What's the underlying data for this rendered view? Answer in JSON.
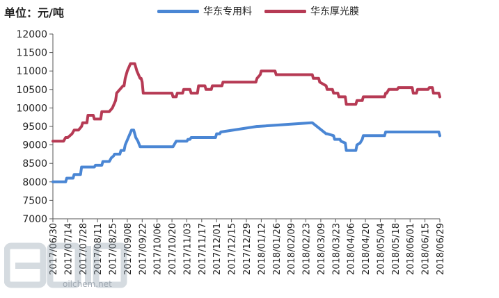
{
  "header": {
    "unit_label": "单位：元/吨"
  },
  "watermark": {
    "text": "oilchem.net"
  },
  "chart_data": {
    "type": "line",
    "ylim": [
      7000,
      12000
    ],
    "yticks": [
      7000,
      7500,
      8000,
      8500,
      9000,
      9500,
      10000,
      10500,
      11000,
      11500,
      12000
    ],
    "xlim": [
      "2017-06-30",
      "2018-06-29"
    ],
    "xtick_labels": [
      "2017/06/30",
      "2017/07/14",
      "2017/07/28",
      "2017/08/11",
      "2017/08/25",
      "2017/09/08",
      "2017/09/22",
      "2017/10/06",
      "2017/10/20",
      "2017/11/03",
      "2017/11/17",
      "2017/12/01",
      "2017/12/15",
      "2017/12/29",
      "2018/01/12",
      "2018/01/26",
      "2018/02/09",
      "2018/02/23",
      "2018/03/09",
      "2018/03/23",
      "2018/04/06",
      "2018/04/20",
      "2018/05/04",
      "2018/05/18",
      "2018/06/01",
      "2018/06/15",
      "2018/06/29"
    ],
    "legend_position": "top",
    "grid": false,
    "series": [
      {
        "name": "华东专用料",
        "color": "#4a86d4",
        "x": [
          "2017-06-30",
          "2017-07-12",
          "2017-07-13",
          "2017-07-19",
          "2017-07-20",
          "2017-07-26",
          "2017-07-27",
          "2017-08-08",
          "2017-08-09",
          "2017-08-15",
          "2017-08-16",
          "2017-08-22",
          "2017-08-23",
          "2017-08-24",
          "2017-08-26",
          "2017-08-27",
          "2017-09-01",
          "2017-09-02",
          "2017-09-05",
          "2017-09-06",
          "2017-09-12",
          "2017-09-13",
          "2017-09-14",
          "2017-09-15",
          "2017-09-16",
          "2017-09-18",
          "2017-09-20",
          "2017-10-20",
          "2017-10-21",
          "2017-10-24",
          "2017-10-25",
          "2017-11-03",
          "2017-11-04",
          "2017-11-06",
          "2017-11-07",
          "2017-11-30",
          "2017-12-01",
          "2017-12-04",
          "2017-12-05",
          "2018-01-08",
          "2018-01-09",
          "2018-02-28",
          "2018-03-01",
          "2018-03-14",
          "2018-03-15",
          "2018-03-21",
          "2018-03-22",
          "2018-03-27",
          "2018-03-28",
          "2018-04-01",
          "2018-04-02",
          "2018-04-11",
          "2018-04-12",
          "2018-04-15",
          "2018-04-17",
          "2018-04-18",
          "2018-04-27",
          "2018-04-28",
          "2018-05-08",
          "2018-05-09",
          "2018-06-28",
          "2018-06-29"
        ],
        "y": [
          8000,
          8000,
          8100,
          8100,
          8200,
          8200,
          8400,
          8400,
          8450,
          8450,
          8550,
          8550,
          8600,
          8650,
          8700,
          8750,
          8750,
          8850,
          8850,
          9000,
          9400,
          9400,
          9400,
          9300,
          9200,
          9100,
          8950,
          8950,
          8950,
          9100,
          9100,
          9100,
          9150,
          9150,
          9200,
          9200,
          9300,
          9300,
          9350,
          9500,
          9500,
          9600,
          9600,
          9300,
          9300,
          9250,
          9150,
          9150,
          9100,
          9050,
          8850,
          8850,
          9000,
          9050,
          9150,
          9250,
          9250,
          9250,
          9250,
          9350,
          9350,
          9250
        ]
      },
      {
        "name": "华东厚光膜",
        "color": "#b63a54",
        "x": [
          "2017-06-30",
          "2017-07-10",
          "2017-07-12",
          "2017-07-14",
          "2017-07-18",
          "2017-07-20",
          "2017-07-24",
          "2017-07-27",
          "2017-07-28",
          "2017-08-01",
          "2017-08-02",
          "2017-08-07",
          "2017-08-08",
          "2017-08-14",
          "2017-08-15",
          "2017-08-21",
          "2017-08-22",
          "2017-08-25",
          "2017-08-28",
          "2017-08-29",
          "2017-09-04",
          "2017-09-05",
          "2017-09-06",
          "2017-09-08",
          "2017-09-11",
          "2017-09-15",
          "2017-09-17",
          "2017-09-20",
          "2017-09-21",
          "2017-09-22",
          "2017-09-23",
          "2017-10-20",
          "2017-10-21",
          "2017-10-24",
          "2017-10-25",
          "2017-10-30",
          "2017-10-31",
          "2017-11-06",
          "2017-11-07",
          "2017-11-13",
          "2017-11-14",
          "2017-11-20",
          "2017-11-21",
          "2017-11-26",
          "2017-11-27",
          "2017-12-06",
          "2017-12-07",
          "2018-01-07",
          "2018-01-08",
          "2018-01-11",
          "2018-01-12",
          "2018-01-25",
          "2018-01-26",
          "2018-03-01",
          "2018-03-02",
          "2018-03-07",
          "2018-03-08",
          "2018-03-14",
          "2018-03-15",
          "2018-03-20",
          "2018-03-21",
          "2018-03-25",
          "2018-03-26",
          "2018-04-01",
          "2018-04-02",
          "2018-04-11",
          "2018-04-12",
          "2018-04-17",
          "2018-04-18",
          "2018-04-23",
          "2018-04-24",
          "2018-05-08",
          "2018-05-09",
          "2018-05-10",
          "2018-05-12",
          "2018-05-20",
          "2018-05-21",
          "2018-06-03",
          "2018-06-04",
          "2018-06-07",
          "2018-06-08",
          "2018-06-18",
          "2018-06-19",
          "2018-06-22",
          "2018-06-23",
          "2018-06-28",
          "2018-06-29"
        ],
        "y": [
          9100,
          9100,
          9200,
          9200,
          9300,
          9400,
          9400,
          9500,
          9600,
          9600,
          9800,
          9800,
          9700,
          9700,
          9900,
          9900,
          9900,
          10000,
          10200,
          10400,
          10600,
          10600,
          10800,
          11000,
          11200,
          11200,
          11000,
          10800,
          10800,
          10700,
          10400,
          10400,
          10300,
          10300,
          10400,
          10400,
          10500,
          10500,
          10400,
          10400,
          10600,
          10600,
          10500,
          10500,
          10600,
          10600,
          10700,
          10700,
          10800,
          10900,
          11000,
          11000,
          10900,
          10900,
          10800,
          10800,
          10700,
          10600,
          10500,
          10500,
          10400,
          10400,
          10300,
          10300,
          10100,
          10100,
          10200,
          10200,
          10300,
          10300,
          10300,
          10300,
          10400,
          10400,
          10500,
          10500,
          10550,
          10550,
          10400,
          10400,
          10500,
          10500,
          10550,
          10550,
          10400,
          10400,
          10300
        ]
      }
    ]
  }
}
